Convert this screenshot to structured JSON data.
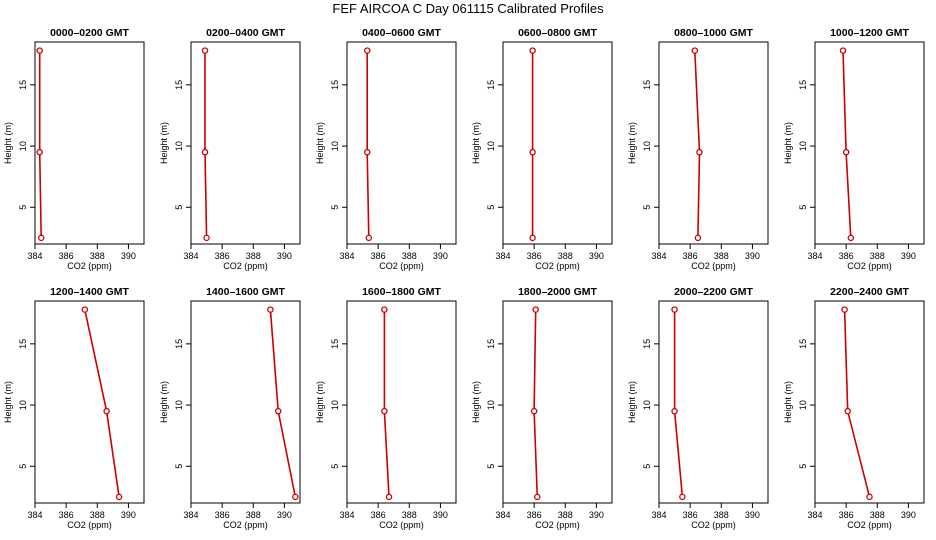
{
  "title": "FEF AIRCOA C  Day 061115  Calibrated Profiles",
  "chart_data": [
    {
      "type": "line",
      "title": "0000–0200 GMT",
      "xlabel": "CO2 (ppm)",
      "ylabel": "Height (m)",
      "xlim": [
        384,
        391
      ],
      "ylim": [
        2,
        18.5
      ],
      "xticks": [
        384,
        386,
        388,
        390
      ],
      "yticks": [
        5,
        10,
        15
      ],
      "grid": false,
      "color": "#cc0000",
      "points": [
        {
          "co2": 384.3,
          "height": 17.8
        },
        {
          "co2": 384.3,
          "height": 9.5
        },
        {
          "co2": 384.4,
          "height": 2.5
        }
      ]
    },
    {
      "type": "line",
      "title": "0200–0400 GMT",
      "xlabel": "CO2 (ppm)",
      "ylabel": "Height (m)",
      "xlim": [
        384,
        391
      ],
      "ylim": [
        2,
        18.5
      ],
      "xticks": [
        384,
        386,
        388,
        390
      ],
      "yticks": [
        5,
        10,
        15
      ],
      "grid": false,
      "color": "#cc0000",
      "points": [
        {
          "co2": 384.9,
          "height": 17.8
        },
        {
          "co2": 384.9,
          "height": 9.5
        },
        {
          "co2": 385.0,
          "height": 2.5
        }
      ]
    },
    {
      "type": "line",
      "title": "0400–0600 GMT",
      "xlabel": "CO2 (ppm)",
      "ylabel": "Height (m)",
      "xlim": [
        384,
        391
      ],
      "ylim": [
        2,
        18.5
      ],
      "xticks": [
        384,
        386,
        388,
        390
      ],
      "yticks": [
        5,
        10,
        15
      ],
      "grid": false,
      "color": "#cc0000",
      "points": [
        {
          "co2": 385.3,
          "height": 17.8
        },
        {
          "co2": 385.3,
          "height": 9.5
        },
        {
          "co2": 385.4,
          "height": 2.5
        }
      ]
    },
    {
      "type": "line",
      "title": "0600–0800 GMT",
      "xlabel": "CO2 (ppm)",
      "ylabel": "Height (m)",
      "xlim": [
        384,
        391
      ],
      "ylim": [
        2,
        18.5
      ],
      "xticks": [
        384,
        386,
        388,
        390
      ],
      "yticks": [
        5,
        10,
        15
      ],
      "grid": false,
      "color": "#cc0000",
      "points": [
        {
          "co2": 385.9,
          "height": 17.8
        },
        {
          "co2": 385.9,
          "height": 9.5
        },
        {
          "co2": 385.9,
          "height": 2.5
        }
      ]
    },
    {
      "type": "line",
      "title": "0800–1000 GMT",
      "xlabel": "CO2 (ppm)",
      "ylabel": "Height (m)",
      "xlim": [
        384,
        391
      ],
      "ylim": [
        2,
        18.5
      ],
      "xticks": [
        384,
        386,
        388,
        390
      ],
      "yticks": [
        5,
        10,
        15
      ],
      "grid": false,
      "color": "#cc0000",
      "points": [
        {
          "co2": 386.3,
          "height": 17.8
        },
        {
          "co2": 386.6,
          "height": 9.5
        },
        {
          "co2": 386.5,
          "height": 2.5
        }
      ]
    },
    {
      "type": "line",
      "title": "1000–1200 GMT",
      "xlabel": "CO2 (ppm)",
      "ylabel": "Height (m)",
      "xlim": [
        384,
        391
      ],
      "ylim": [
        2,
        18.5
      ],
      "xticks": [
        384,
        386,
        388,
        390
      ],
      "yticks": [
        5,
        10,
        15
      ],
      "grid": false,
      "color": "#cc0000",
      "points": [
        {
          "co2": 385.8,
          "height": 17.8
        },
        {
          "co2": 386.0,
          "height": 9.5
        },
        {
          "co2": 386.3,
          "height": 2.5
        }
      ]
    },
    {
      "type": "line",
      "title": "1200–1400 GMT",
      "xlabel": "CO2 (ppm)",
      "ylabel": "Height (m)",
      "xlim": [
        384,
        391
      ],
      "ylim": [
        2,
        18.5
      ],
      "xticks": [
        384,
        386,
        388,
        390
      ],
      "yticks": [
        5,
        10,
        15
      ],
      "grid": false,
      "color": "#cc0000",
      "points": [
        {
          "co2": 387.2,
          "height": 17.8
        },
        {
          "co2": 388.6,
          "height": 9.5
        },
        {
          "co2": 389.4,
          "height": 2.5
        }
      ]
    },
    {
      "type": "line",
      "title": "1400–1600 GMT",
      "xlabel": "CO2 (ppm)",
      "ylabel": "Height (m)",
      "xlim": [
        384,
        391
      ],
      "ylim": [
        2,
        18.5
      ],
      "xticks": [
        384,
        386,
        388,
        390
      ],
      "yticks": [
        5,
        10,
        15
      ],
      "grid": false,
      "color": "#cc0000",
      "points": [
        {
          "co2": 389.1,
          "height": 17.8
        },
        {
          "co2": 389.6,
          "height": 9.5
        },
        {
          "co2": 390.7,
          "height": 2.5
        }
      ]
    },
    {
      "type": "line",
      "title": "1600–1800 GMT",
      "xlabel": "CO2 (ppm)",
      "ylabel": "Height (m)",
      "xlim": [
        384,
        391
      ],
      "ylim": [
        2,
        18.5
      ],
      "xticks": [
        384,
        386,
        388,
        390
      ],
      "yticks": [
        5,
        10,
        15
      ],
      "grid": false,
      "color": "#cc0000",
      "points": [
        {
          "co2": 386.4,
          "height": 17.8
        },
        {
          "co2": 386.4,
          "height": 9.5
        },
        {
          "co2": 386.7,
          "height": 2.5
        }
      ]
    },
    {
      "type": "line",
      "title": "1800–2000 GMT",
      "xlabel": "CO2 (ppm)",
      "ylabel": "Height (m)",
      "xlim": [
        384,
        391
      ],
      "ylim": [
        2,
        18.5
      ],
      "xticks": [
        384,
        386,
        388,
        390
      ],
      "yticks": [
        5,
        10,
        15
      ],
      "grid": false,
      "color": "#cc0000",
      "points": [
        {
          "co2": 386.1,
          "height": 17.8
        },
        {
          "co2": 386.0,
          "height": 9.5
        },
        {
          "co2": 386.2,
          "height": 2.5
        }
      ]
    },
    {
      "type": "line",
      "title": "2000–2200 GMT",
      "xlabel": "CO2 (ppm)",
      "ylabel": "Height (m)",
      "xlim": [
        384,
        391
      ],
      "ylim": [
        2,
        18.5
      ],
      "xticks": [
        384,
        386,
        388,
        390
      ],
      "yticks": [
        5,
        10,
        15
      ],
      "grid": false,
      "color": "#cc0000",
      "points": [
        {
          "co2": 385.0,
          "height": 17.8
        },
        {
          "co2": 385.0,
          "height": 9.5
        },
        {
          "co2": 385.5,
          "height": 2.5
        }
      ]
    },
    {
      "type": "line",
      "title": "2200–2400 GMT",
      "xlabel": "CO2 (ppm)",
      "ylabel": "Height (m)",
      "xlim": [
        384,
        391
      ],
      "ylim": [
        2,
        18.5
      ],
      "xticks": [
        384,
        386,
        388,
        390
      ],
      "yticks": [
        5,
        10,
        15
      ],
      "grid": false,
      "color": "#cc0000",
      "points": [
        {
          "co2": 385.9,
          "height": 17.8
        },
        {
          "co2": 386.1,
          "height": 9.5
        },
        {
          "co2": 387.5,
          "height": 2.5
        }
      ]
    }
  ]
}
